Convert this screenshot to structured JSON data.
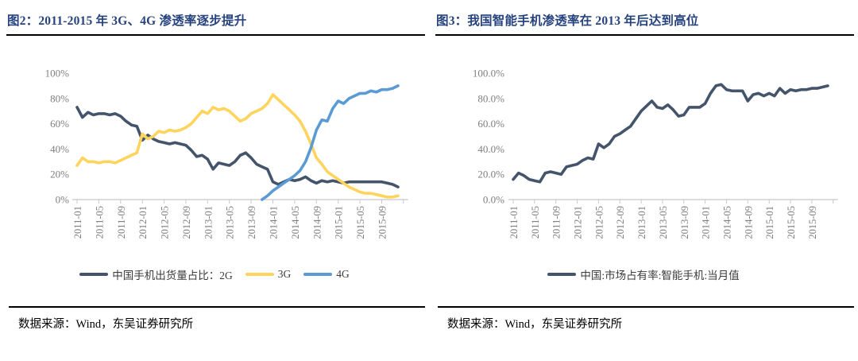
{
  "chart_data": [
    {
      "type": "line",
      "title": "图2：2011-2015 年 3G、4G 渗透率逐步提升",
      "source": "数据来源：Wind，东吴证券研究所",
      "xlabel": "",
      "ylabel": "",
      "ylim": [
        0,
        100
      ],
      "grid": false,
      "legend_position": "bottom",
      "y_tick_labels": [
        "0%",
        "20%",
        "40%",
        "60%",
        "80%",
        "100%"
      ],
      "x_tick_labels": [
        "2011-01",
        "2011-05",
        "2011-09",
        "2012-01",
        "2012-05",
        "2012-09",
        "2013-01",
        "2013-05",
        "2013-09",
        "2014-01",
        "2014-05",
        "2014-09",
        "2015-01",
        "2015-05",
        "2015-09"
      ],
      "x": [
        "2011-01",
        "2011-02",
        "2011-03",
        "2011-04",
        "2011-05",
        "2011-06",
        "2011-07",
        "2011-08",
        "2011-09",
        "2011-10",
        "2011-11",
        "2011-12",
        "2012-01",
        "2012-02",
        "2012-03",
        "2012-04",
        "2012-05",
        "2012-06",
        "2012-07",
        "2012-08",
        "2012-09",
        "2012-10",
        "2012-11",
        "2012-12",
        "2013-01",
        "2013-02",
        "2013-03",
        "2013-04",
        "2013-05",
        "2013-06",
        "2013-07",
        "2013-08",
        "2013-09",
        "2013-10",
        "2013-11",
        "2013-12",
        "2014-01",
        "2014-02",
        "2014-03",
        "2014-04",
        "2014-05",
        "2014-06",
        "2014-07",
        "2014-08",
        "2014-09",
        "2014-10",
        "2014-11",
        "2014-12",
        "2015-01",
        "2015-02",
        "2015-03",
        "2015-04",
        "2015-05",
        "2015-06",
        "2015-07",
        "2015-08",
        "2015-09",
        "2015-10",
        "2015-11",
        "2015-12"
      ],
      "series": [
        {
          "key": "2g",
          "name": "中国手机出货量占比：2G",
          "color": "#44546A",
          "values": [
            73,
            65,
            69,
            67,
            68,
            68,
            67,
            68,
            66,
            62,
            59,
            58,
            47,
            51,
            48,
            46,
            45,
            44,
            45,
            44,
            43,
            39,
            34,
            35,
            32,
            24,
            29,
            28,
            27,
            30,
            35,
            37,
            33,
            28,
            26,
            24,
            14,
            12,
            14,
            16,
            15,
            16,
            18,
            15,
            13,
            15,
            14,
            15,
            14,
            13,
            14,
            14,
            14,
            14,
            14,
            14,
            14,
            13,
            12,
            10
          ]
        },
        {
          "key": "3g",
          "name": "3G",
          "color": "#FFD45E",
          "values": [
            27,
            33,
            30,
            30,
            29,
            30,
            30,
            29,
            31,
            33,
            35,
            37,
            52,
            48,
            50,
            54,
            53,
            55,
            54,
            55,
            57,
            60,
            65,
            70,
            68,
            73,
            71,
            72,
            70,
            66,
            62,
            64,
            68,
            70,
            72,
            76,
            83,
            79,
            75,
            71,
            67,
            62,
            54,
            44,
            33,
            28,
            22,
            19,
            16,
            13,
            10,
            8,
            6,
            5,
            5,
            4,
            3,
            2,
            2,
            3
          ]
        },
        {
          "key": "4g",
          "name": "4G",
          "color": "#5B9BD5",
          "values": [
            null,
            null,
            null,
            null,
            null,
            null,
            null,
            null,
            null,
            null,
            null,
            null,
            null,
            null,
            null,
            null,
            null,
            null,
            null,
            null,
            null,
            null,
            null,
            null,
            null,
            null,
            null,
            null,
            null,
            null,
            null,
            null,
            null,
            null,
            0,
            3,
            7,
            10,
            13,
            16,
            19,
            23,
            30,
            41,
            55,
            63,
            62,
            72,
            78,
            76,
            80,
            82,
            84,
            84,
            86,
            85,
            87,
            87,
            88,
            90
          ]
        }
      ]
    },
    {
      "type": "line",
      "title": "图3：我国智能手机渗透率在 2013 年后达到高位",
      "source": "数据来源：Wind，东吴证券研究所",
      "xlabel": "",
      "ylabel": "",
      "ylim": [
        0,
        100
      ],
      "grid": false,
      "legend_position": "bottom",
      "y_tick_labels": [
        "0.0%",
        "20.0%",
        "40.0%",
        "60.0%",
        "80.0%",
        "100.0%"
      ],
      "x_tick_labels": [
        "2011-01",
        "2011-05",
        "2011-09",
        "2012-01",
        "2012-05",
        "2012-09",
        "2013-01",
        "2013-05",
        "2013-09",
        "2014-01",
        "2014-05",
        "2014-09",
        "2015-01",
        "2015-05",
        "2015-09"
      ],
      "x": [
        "2011-01",
        "2011-02",
        "2011-03",
        "2011-04",
        "2011-05",
        "2011-06",
        "2011-07",
        "2011-08",
        "2011-09",
        "2011-10",
        "2011-11",
        "2011-12",
        "2012-01",
        "2012-02",
        "2012-03",
        "2012-04",
        "2012-05",
        "2012-06",
        "2012-07",
        "2012-08",
        "2012-09",
        "2012-10",
        "2012-11",
        "2012-12",
        "2013-01",
        "2013-02",
        "2013-03",
        "2013-04",
        "2013-05",
        "2013-06",
        "2013-07",
        "2013-08",
        "2013-09",
        "2013-10",
        "2013-11",
        "2013-12",
        "2014-01",
        "2014-02",
        "2014-03",
        "2014-04",
        "2014-05",
        "2014-06",
        "2014-07",
        "2014-08",
        "2014-09",
        "2014-10",
        "2014-11",
        "2014-12",
        "2015-01",
        "2015-02",
        "2015-03",
        "2015-04",
        "2015-05",
        "2015-06",
        "2015-07",
        "2015-08",
        "2015-09",
        "2015-10",
        "2015-11",
        "2015-12"
      ],
      "series": [
        {
          "key": "smartphone",
          "name": "中国:市场占有率:智能手机:当月值",
          "color": "#44546A",
          "values": [
            16,
            21,
            19,
            16,
            15,
            14,
            21,
            22,
            21,
            20,
            26,
            27,
            28,
            31,
            33,
            32,
            44,
            41,
            44,
            50,
            52,
            55,
            58,
            64,
            70,
            74,
            78,
            73,
            72,
            75,
            71,
            66,
            67,
            73,
            73,
            73,
            76,
            84,
            90,
            91,
            87,
            86,
            86,
            86,
            78,
            83,
            84,
            82,
            84,
            82,
            88,
            84,
            87,
            86,
            87,
            87,
            88,
            88,
            89,
            90
          ]
        }
      ]
    }
  ]
}
